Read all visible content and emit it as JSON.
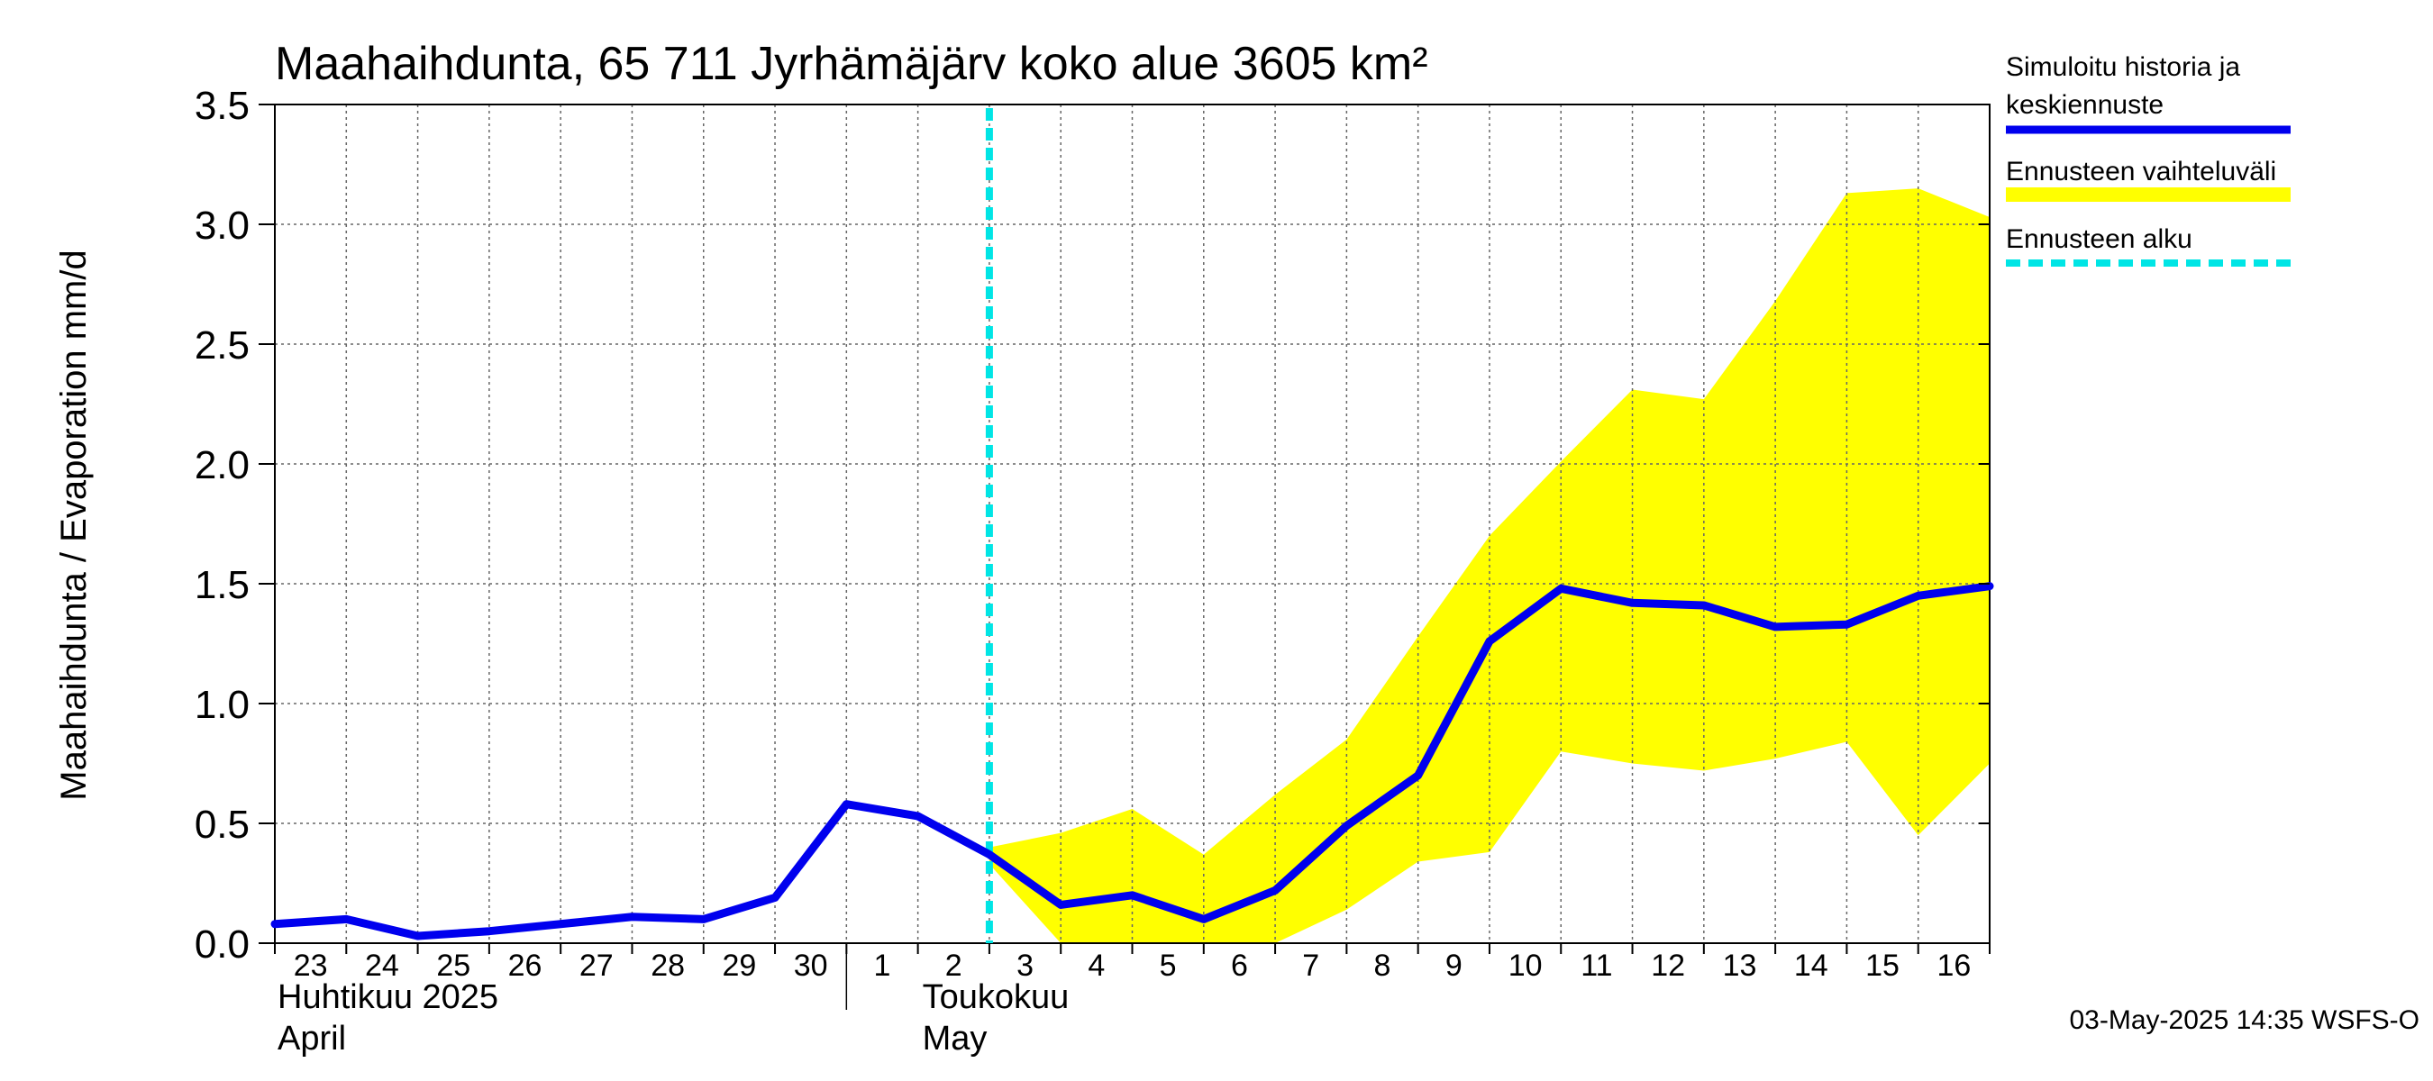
{
  "chart_data": {
    "type": "line",
    "title": "Maahaihdunta, 65 711 Jyrhämäjärv koko alue 3605 km²",
    "ylabel": "Maahaihdunta / Evaporation   mm/d",
    "ylim": [
      0,
      3.5
    ],
    "yticks": [
      "0.0",
      "0.5",
      "1.0",
      "1.5",
      "2.0",
      "2.5",
      "3.0",
      "3.5"
    ],
    "x_dates": [
      "2025-04-23",
      "2025-04-24",
      "2025-04-25",
      "2025-04-26",
      "2025-04-27",
      "2025-04-28",
      "2025-04-29",
      "2025-04-30",
      "2025-05-01",
      "2025-05-02",
      "2025-05-03",
      "2025-05-04",
      "2025-05-05",
      "2025-05-06",
      "2025-05-07",
      "2025-05-08",
      "2025-05-09",
      "2025-05-10",
      "2025-05-11",
      "2025-05-12",
      "2025-05-13",
      "2025-05-14",
      "2025-05-15",
      "2025-05-16",
      "2025-05-17"
    ],
    "xtick_labels": [
      "23",
      "24",
      "25",
      "26",
      "27",
      "28",
      "29",
      "30",
      "1",
      "2",
      "3",
      "4",
      "5",
      "6",
      "7",
      "8",
      "9",
      "10",
      "11",
      "12",
      "13",
      "14",
      "15",
      "16"
    ],
    "month_labels": [
      {
        "line1": "Huhtikuu  2025",
        "line2": "April"
      },
      {
        "line1": "Toukokuu",
        "line2": "May"
      }
    ],
    "series": [
      {
        "name": "Simuloitu historia ja keskiennuste",
        "color": "#0000ee",
        "values": [
          0.08,
          0.1,
          0.03,
          0.05,
          0.08,
          0.11,
          0.1,
          0.19,
          0.58,
          0.53,
          0.37,
          0.16,
          0.2,
          0.1,
          0.22,
          0.49,
          0.7,
          1.26,
          1.48,
          1.42,
          1.41,
          1.32,
          1.33,
          1.45,
          1.49
        ]
      }
    ],
    "band": {
      "name": "Ennusteen vaihteluväli",
      "color": "#ffff00",
      "start_index": 10,
      "upper": [
        0.4,
        0.46,
        0.56,
        0.37,
        0.62,
        0.85,
        1.28,
        1.7,
        2.01,
        2.31,
        2.27,
        2.68,
        3.13,
        3.15,
        3.03
      ],
      "lower": [
        0.33,
        0.0,
        0.0,
        0.0,
        0.0,
        0.14,
        0.34,
        0.38,
        0.8,
        0.75,
        0.72,
        0.77,
        0.84,
        0.45,
        0.75
      ]
    },
    "forecast_start": {
      "name": "Ennusteen alku",
      "color": "#00e5e5",
      "date": "2025-05-03"
    },
    "legend": [
      {
        "line1": "Simuloitu historia ja",
        "line2": "keskiennuste",
        "color": "#0000ee",
        "style": "solid"
      },
      {
        "line1": "Ennusteen vaihteluväli",
        "line2": "",
        "color": "#ffff00",
        "style": "band"
      },
      {
        "line1": "Ennusteen alku",
        "line2": "",
        "color": "#00e5e5",
        "style": "dashed"
      }
    ],
    "legend_position": "right",
    "grid": true,
    "timestamp": "03-May-2025 14:35 WSFS-O"
  }
}
